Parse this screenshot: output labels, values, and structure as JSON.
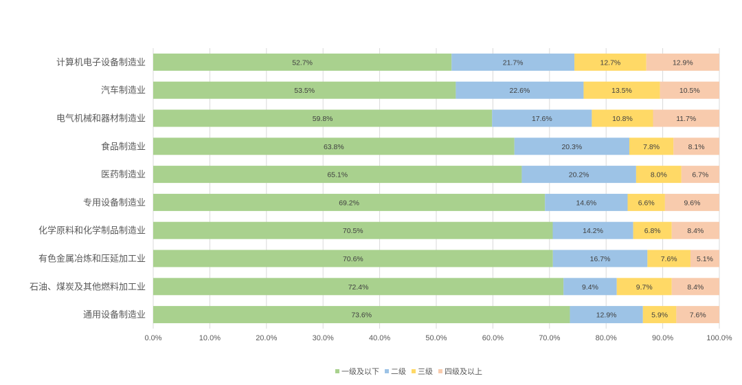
{
  "chart_data": {
    "type": "bar",
    "orientation": "horizontal",
    "stacked": "percent",
    "categories": [
      "计算机电子设备制造业",
      "汽车制造业",
      "电气机械和器材制造业",
      "食品制造业",
      "医药制造业",
      "专用设备制造业",
      "化学原料和化学制品制造业",
      "有色金属冶炼和压延加工业",
      "石油、煤炭及其他燃料加工业",
      "通用设备制造业"
    ],
    "series": [
      {
        "name": "一级及以下",
        "color": "#a9d18e",
        "values": [
          52.7,
          53.5,
          59.8,
          63.8,
          65.1,
          69.2,
          70.5,
          70.6,
          72.4,
          73.6
        ]
      },
      {
        "name": "二级",
        "color": "#9dc3e6",
        "values": [
          21.7,
          22.6,
          17.6,
          20.3,
          20.2,
          14.6,
          14.2,
          16.7,
          9.4,
          12.9
        ]
      },
      {
        "name": "三级",
        "color": "#ffd966",
        "values": [
          12.7,
          13.5,
          10.8,
          7.8,
          8.0,
          6.6,
          6.8,
          7.6,
          9.7,
          5.9
        ]
      },
      {
        "name": "四级及以上",
        "color": "#f8cbad",
        "values": [
          12.9,
          10.5,
          11.7,
          8.1,
          6.7,
          9.6,
          8.4,
          5.1,
          8.4,
          7.6
        ]
      }
    ],
    "data_labels": [
      [
        "52.7%",
        "53.5%",
        "59.8%",
        "63.8%",
        "65.1%",
        "69.2%",
        "70.5%",
        "70.6%",
        "72.4%",
        "73.6%"
      ],
      [
        "21.7%",
        "22.6%",
        "17.6%",
        "20.3%",
        "20.2%",
        "14.6%",
        "14.2%",
        "16.7%",
        "9.4%",
        "12.9%"
      ],
      [
        "12.7%",
        "13.5%",
        "10.8%",
        "7.8%",
        "8.0%",
        "6.6%",
        "6.8%",
        "7.6%",
        "9.7%",
        "5.9%"
      ],
      [
        "12.9%",
        "10.5%",
        "11.7%",
        "8.1%",
        "6.7%",
        "9.6%",
        "8.4%",
        "5.1%",
        "8.4%",
        "7.6%"
      ]
    ],
    "xlim": [
      0,
      100
    ],
    "x_ticks": [
      "0.0%",
      "10.0%",
      "20.0%",
      "30.0%",
      "40.0%",
      "50.0%",
      "60.0%",
      "70.0%",
      "80.0%",
      "90.0%",
      "100.0%"
    ],
    "grid": true,
    "legend": "bottom",
    "title": "",
    "xlabel": "",
    "ylabel": ""
  }
}
